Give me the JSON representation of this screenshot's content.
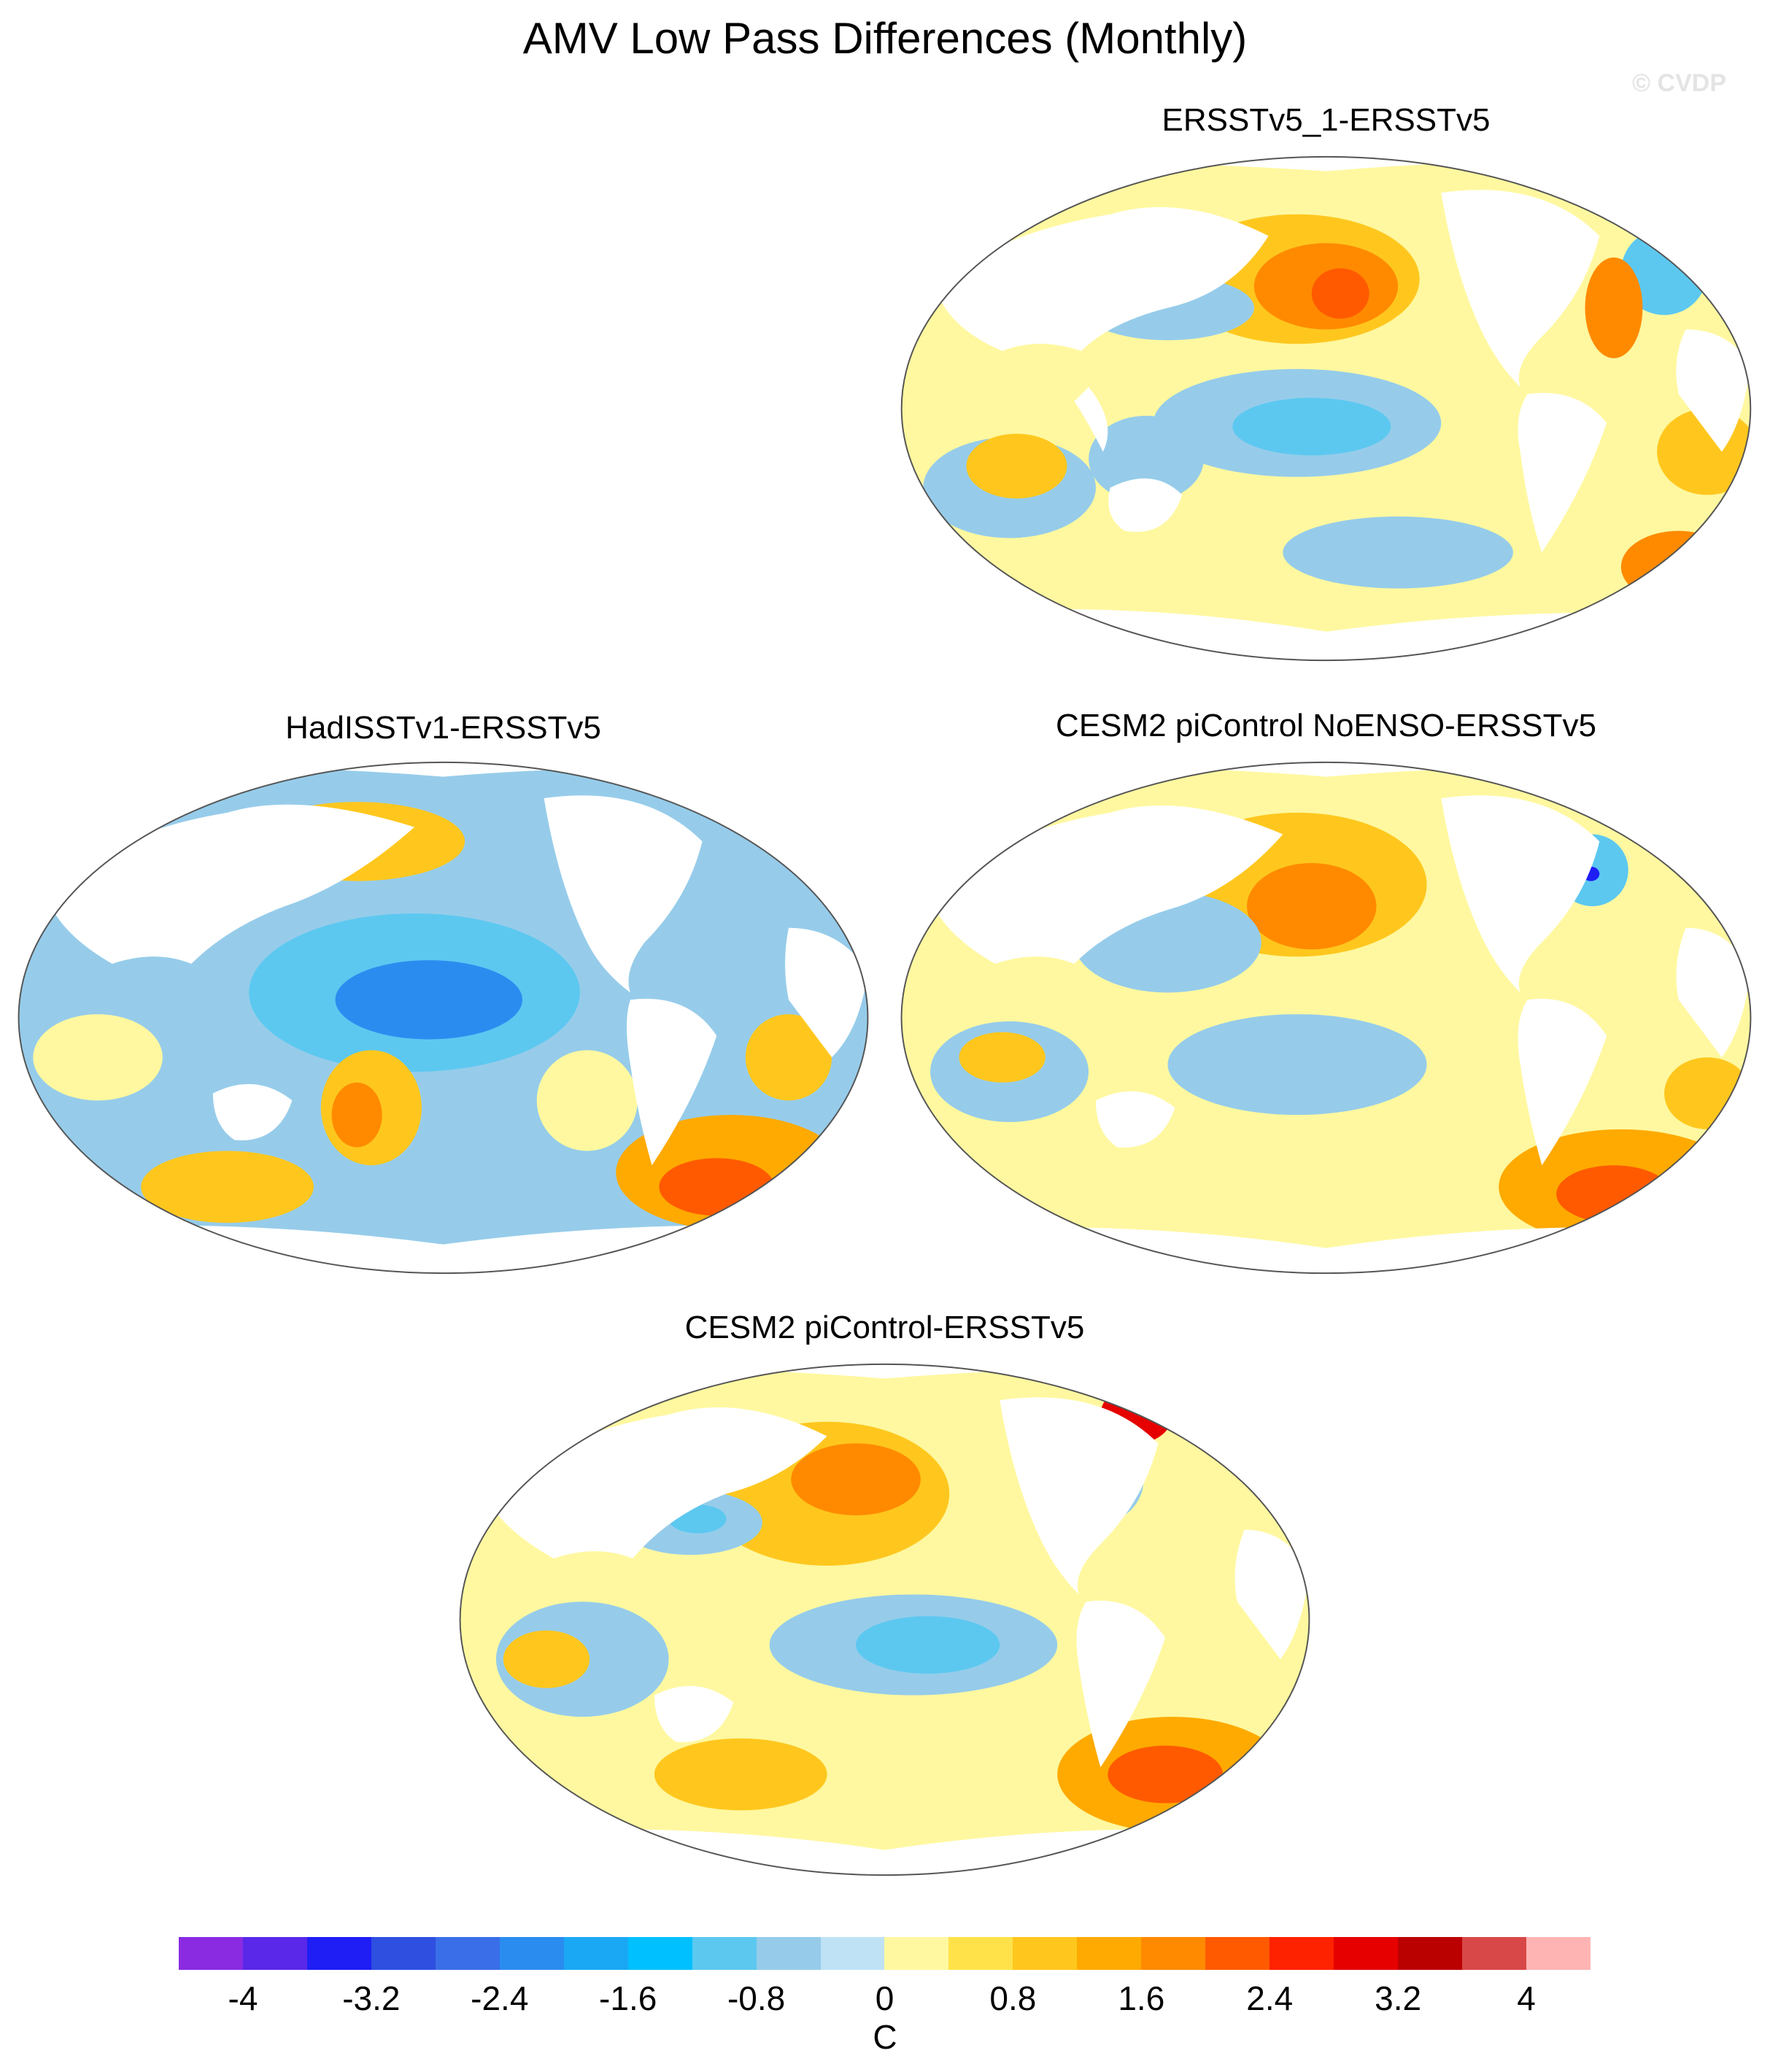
{
  "title": "AMV Low Pass Differences (Monthly)",
  "watermark": "© CVDP",
  "panels": [
    {
      "id": "p1",
      "label": "ERSSTv5_1-ERSSTv5"
    },
    {
      "id": "p2",
      "label": "HadISSTv1-ERSSTv5"
    },
    {
      "id": "p3",
      "label": "CESM2 piControl NoENSO-ERSSTv5"
    },
    {
      "id": "p4",
      "label": "CESM2 piControl-ERSSTv5"
    }
  ],
  "colorbar": {
    "unit": "C",
    "tick_labels": [
      "-4",
      "-3.2",
      "-2.4",
      "-1.6",
      "-0.8",
      "0",
      "0.8",
      "1.6",
      "2.4",
      "3.2",
      "4"
    ],
    "colors": [
      "#8a2be2",
      "#5a28e8",
      "#1e1ef5",
      "#2e4fe0",
      "#3a6ee8",
      "#2b8cf0",
      "#1aa8f5",
      "#00c0ff",
      "#5cc8f0",
      "#96ccea",
      "#bfe2f5",
      "#fff8a0",
      "#ffe24a",
      "#ffc71e",
      "#ffaa00",
      "#ff8a00",
      "#ff5a00",
      "#ff2200",
      "#e60000",
      "#bb0000",
      "#d84848",
      "#ffb4b4"
    ]
  }
}
